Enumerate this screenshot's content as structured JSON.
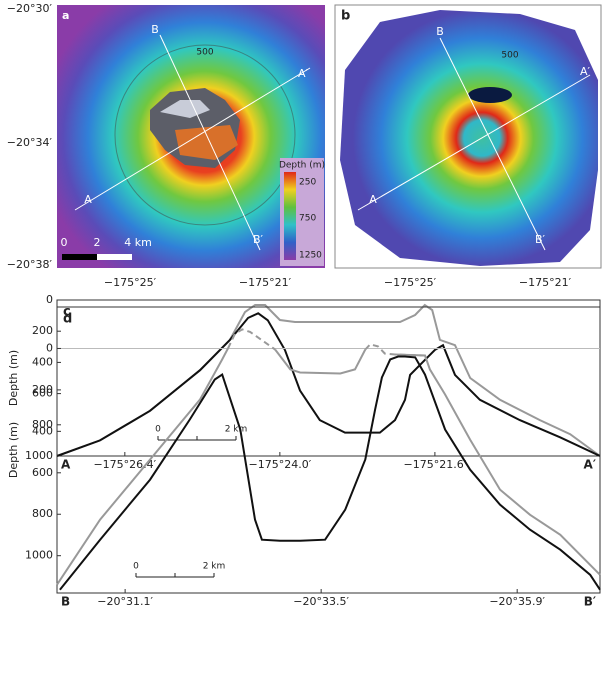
{
  "maps": [
    {
      "letter": "a",
      "lat_labels": [
        "−20°30′",
        "−20°34′",
        "−20°38′"
      ],
      "lon_labels": [
        "−175°25′",
        "−175°21′"
      ],
      "profile_labels": [
        "B",
        "A′",
        "A",
        "B′"
      ],
      "contour_label": "500",
      "colorbar": {
        "title": "Depth (m)",
        "labels": [
          "250",
          "750",
          "1250"
        ]
      },
      "scale_labels": [
        "0",
        "2",
        "4 km"
      ]
    },
    {
      "letter": "b",
      "lon_labels": [
        "−175°25′",
        "−175°21′"
      ],
      "profile_labels": [
        "B",
        "A′",
        "A",
        "B′"
      ],
      "contour_label": "500"
    }
  ],
  "chart_data": [
    {
      "type": "line",
      "letter": "c",
      "ylabel": "Depth (m)",
      "start_label": "A",
      "end_label": "A′",
      "scale_labels": [
        "0",
        "2 km"
      ],
      "xlim": [
        -175.4575,
        -175.3174
      ],
      "ylim": [
        0,
        1000
      ],
      "y_reversed": true,
      "xticks": [
        {
          "value": -175.44,
          "label": "−175°26.4′"
        },
        {
          "value": -175.4,
          "label": "−175°24.0′"
        },
        {
          "value": -175.36,
          "label": "−175°21.6′"
        }
      ],
      "yticks": [
        0,
        200,
        400,
        600,
        800,
        1000
      ],
      "series": [
        {
          "color": "#999999",
          "x": [
            -175.4575,
            -175.4464,
            -175.4335,
            -175.4206,
            -175.4129,
            -175.409,
            -175.4064,
            -175.4038,
            -175.4,
            -175.3961,
            -175.3793,
            -175.369,
            -175.3651,
            -175.3626,
            -175.3607,
            -175.3587,
            -175.3548,
            -175.3509,
            -175.3432,
            -175.3329,
            -175.3251,
            -175.3174
          ],
          "values": [
            1000,
            900,
            710,
            450,
            256,
            77,
            32,
            32,
            128,
            141,
            141,
            141,
            96,
            32,
            64,
            256,
            290,
            500,
            640,
            770,
            860,
            1000
          ]
        },
        {
          "color": "#111111",
          "x": [
            -175.4575,
            -175.4464,
            -175.4335,
            -175.4206,
            -175.4129,
            -175.4082,
            -175.4056,
            -175.4031,
            -175.3987,
            -175.3948,
            -175.3897,
            -175.3832,
            -175.3742,
            -175.3703,
            -175.3677,
            -175.3664,
            -175.3626,
            -175.36,
            -175.3579,
            -175.3548,
            -175.3484,
            -175.3381,
            -175.3277,
            -175.3174
          ],
          "values": [
            1000,
            900,
            710,
            450,
            256,
            115,
            85,
            130,
            320,
            580,
            770,
            850,
            850,
            770,
            640,
            480,
            385,
            320,
            290,
            480,
            640,
            770,
            880,
            1000
          ]
        }
      ]
    },
    {
      "type": "line",
      "letter": "d",
      "ylabel": "Depth (m)",
      "start_label": "B",
      "end_label": "B′",
      "scale_labels": [
        "0",
        "2 km"
      ],
      "zero_line": true,
      "xlim": [
        -20.5044,
        -20.6152
      ],
      "ylim": [
        -200,
        1180
      ],
      "y_reversed": true,
      "xticks": [
        {
          "value": -20.5183,
          "label": "−20°31.1′"
        },
        {
          "value": -20.5583,
          "label": "−20°33.5′"
        },
        {
          "value": -20.5983,
          "label": "−20°35.9′"
        }
      ],
      "yticks": [
        0,
        200,
        400,
        600,
        800,
        1000
      ],
      "series": [
        {
          "color": "#999999",
          "x": [
            -20.5044,
            -20.5132,
            -20.5234,
            -20.5336,
            -20.5381,
            -20.5393,
            null,
            -20.5489,
            -20.552,
            -20.554,
            -20.5622,
            -20.5652,
            -20.5673,
            null,
            -20.5734,
            -20.5795,
            -20.5805,
            -20.5836,
            -20.5887,
            -20.5948,
            -20.6009,
            -20.6071,
            -20.6152
          ],
          "values": [
            1140,
            826,
            536,
            246,
            53,
            0,
            null,
            5,
            101,
            116,
            121,
            101,
            5,
            null,
            29,
            34,
            101,
            222,
            440,
            681,
            802,
            899,
            1092
          ]
        },
        {
          "color": "#999999",
          "dashed": true,
          "x": [
            -20.5393,
            -20.5407,
            -20.5422,
            -20.5438,
            -20.5462,
            -20.5489,
            null,
            -20.5673,
            -20.5683,
            -20.5699,
            -20.5713,
            -20.5734,
            -20.5795
          ],
          "values": [
            0,
            -70,
            -92,
            -80,
            -40,
            5,
            null,
            5,
            -20,
            -10,
            25,
            29,
            34
          ]
        },
        {
          "color": "#111111",
          "x": [
            -20.505,
            -20.5132,
            -20.5234,
            -20.5315,
            -20.5366,
            -20.5381,
            -20.5418,
            -20.5448,
            -20.5462,
            -20.5499,
            -20.554,
            -20.5591,
            -20.5632,
            -20.5673,
            -20.5693,
            -20.5707,
            -20.5724,
            -20.574,
            -20.5754,
            -20.5775,
            -20.5795,
            -20.5836,
            -20.5887,
            -20.5948,
            -20.6009,
            -20.6071,
            -20.6132,
            -20.6152
          ],
          "values": [
            1164,
            923,
            633,
            343,
            150,
            126,
            391,
            826,
            923,
            928,
            928,
            923,
            778,
            536,
            295,
            140,
            53,
            39,
            39,
            43,
            126,
            391,
            585,
            754,
            874,
            971,
            1092,
            1164
          ]
        }
      ]
    }
  ]
}
